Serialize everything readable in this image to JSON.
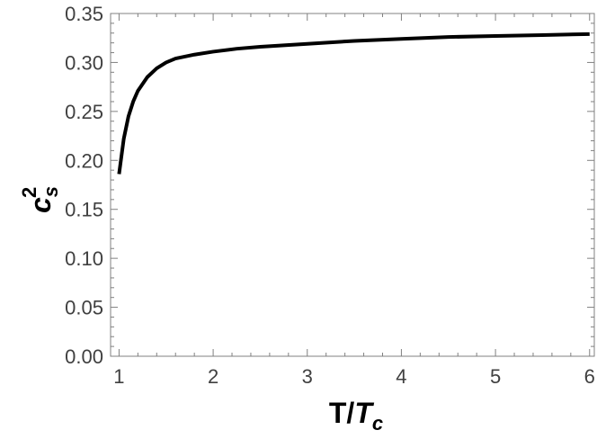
{
  "chart_data": {
    "type": "line",
    "xlabel": {
      "main": "T/",
      "italic": "T",
      "sub": "c"
    },
    "ylabel": {
      "base": "c",
      "sub": "s",
      "sup": "2"
    },
    "xlim": [
      0.91,
      6.05
    ],
    "ylim": [
      0.0,
      0.35
    ],
    "x_ticks": [
      "1",
      "2",
      "3",
      "4",
      "5",
      "6"
    ],
    "y_ticks": [
      "0.00",
      "0.05",
      "0.10",
      "0.15",
      "0.20",
      "0.25",
      "0.30",
      "0.35"
    ],
    "grid": false,
    "frame": true,
    "series": [
      {
        "color": "#000000",
        "x": [
          1.0,
          1.05,
          1.1,
          1.15,
          1.2,
          1.3,
          1.4,
          1.5,
          1.6,
          1.8,
          2.0,
          2.25,
          2.5,
          3.0,
          3.5,
          4.0,
          4.5,
          5.0,
          5.5,
          6.0
        ],
        "y": [
          0.186,
          0.222,
          0.245,
          0.26,
          0.271,
          0.285,
          0.294,
          0.3,
          0.304,
          0.308,
          0.311,
          0.314,
          0.316,
          0.319,
          0.322,
          0.324,
          0.326,
          0.327,
          0.328,
          0.329
        ]
      }
    ]
  }
}
